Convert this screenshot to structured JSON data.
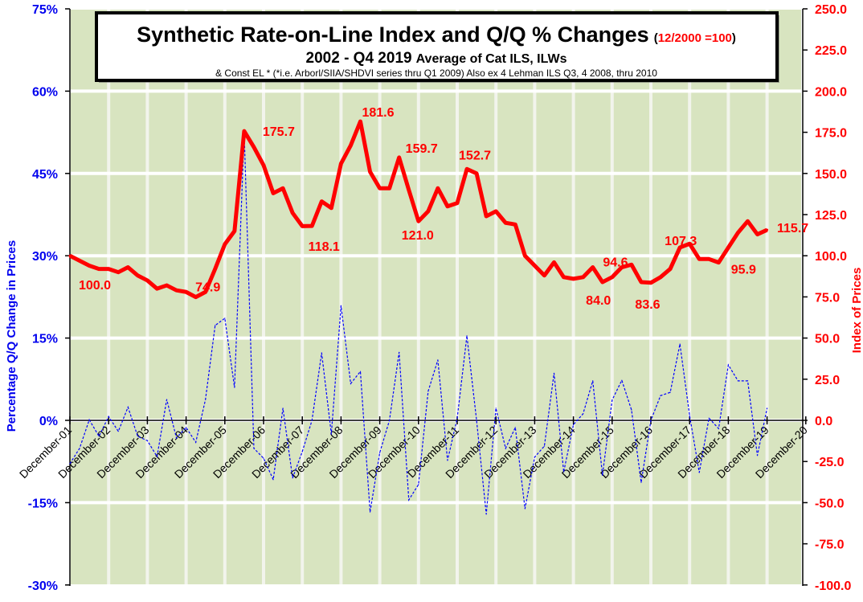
{
  "chart_data": {
    "type": "line",
    "title": "Synthetic Rate-on-Line Index and Q/Q % Changes",
    "title_note": "12/2000 =100",
    "subtitle_bold": "2002 - Q4 2019",
    "subtitle_rest": "Average of Cat ILS, ILWs",
    "footnote": "& Const EL * (*i.e. Arborl/SIIA/SHDVI  series thru Q1 2009)  Also ex 4 Lehman ILS Q3, 4 2008, thru 2010",
    "ylabel_left": "Percentage Q/Q Change in Prices",
    "ylabel_right": "Index of Prices",
    "ylim_left": [
      -30,
      75
    ],
    "ylim_right": [
      -100,
      250
    ],
    "left_ticks": [
      "75%",
      "60%",
      "45%",
      "30%",
      "15%",
      "0%",
      "-15%",
      "-30%"
    ],
    "right_ticks": [
      "250.0",
      "225.0",
      "200.0",
      "175.0",
      "150.0",
      "125.0",
      "100.0",
      "75.0",
      "50.0",
      "25.0",
      "0.0",
      "-25.0",
      "-50.0",
      "-75.0",
      "-100.0"
    ],
    "x_ticks": [
      "December-01",
      "December-02",
      "December-03",
      "December-04",
      "December-05",
      "December-06",
      "December-07",
      "December-08",
      "December-09",
      "December-10",
      "December-11",
      "December-12",
      "December-13",
      "December-14",
      "December-15",
      "December-16",
      "December-17",
      "December-18",
      "December-19",
      "December-20"
    ],
    "x_frequency": "quarterly",
    "grid": true,
    "series": [
      {
        "axis": "right",
        "color": "#ff0000",
        "style": "solid-thick",
        "values": [
          100,
          97,
          94,
          92,
          92,
          90,
          93,
          88,
          85,
          80,
          82,
          79,
          78,
          74.9,
          78,
          92,
          107,
          115,
          175.7,
          166,
          155,
          138,
          141,
          126,
          118,
          118.1,
          133,
          129,
          156,
          167,
          181.6,
          151,
          141,
          141,
          159.7,
          140,
          121.0,
          127,
          141,
          130,
          132,
          152.7,
          150,
          124,
          127,
          120,
          119,
          100,
          94,
          88,
          96,
          87,
          86,
          87,
          93,
          84.0,
          87,
          93,
          94.6,
          84,
          83.6,
          87,
          92,
          105,
          107.3,
          98,
          98,
          95.9,
          105,
          114,
          121,
          113,
          115.7
        ]
      },
      {
        "axis": "left",
        "color": "#0000ff",
        "style": "dotted",
        "values": [
          -7.9,
          -5.1,
          0.1,
          -2.9,
          0.7,
          -2.0,
          2.4,
          -2.9,
          -3.7,
          -6.6,
          3.8,
          -3.2,
          -1.3,
          -4.0,
          3.8,
          17.3,
          18.6,
          6.0,
          52.5,
          -5.1,
          -6.9,
          -10.8,
          2.2,
          -10.5,
          -5.7,
          0.0,
          12.3,
          -2.5,
          20.9,
          6.7,
          8.9,
          -16.7,
          -5.9,
          0.0,
          12.4,
          -14.5,
          -11.7,
          5.3,
          11.0,
          -7.3,
          0.4,
          15.4,
          0.0,
          -17.1,
          2.2,
          -5.1,
          -1.3,
          -16.1,
          -6.7,
          -4.7,
          8.6,
          -9.4,
          -0.8,
          1.2,
          7.2,
          -10.0,
          3.7,
          7.3,
          1.9,
          -11.3,
          0.0,
          4.5,
          5.1,
          13.9,
          0.9,
          -9.5,
          0.4,
          -1.5,
          10.1,
          7.2,
          7.2,
          -6.4,
          2.2
        ]
      }
    ],
    "data_labels": [
      {
        "index": 0,
        "text": "100.0"
      },
      {
        "index": 13,
        "text": "74.9"
      },
      {
        "index": 18,
        "text": "175.7"
      },
      {
        "index": 25,
        "text": "118.1"
      },
      {
        "index": 30,
        "text": "181.6"
      },
      {
        "index": 34,
        "text": "159.7"
      },
      {
        "index": 36,
        "text": "121.0"
      },
      {
        "index": 41,
        "text": "152.7"
      },
      {
        "index": 55,
        "text": "84.0"
      },
      {
        "index": 58,
        "text": "94.6"
      },
      {
        "index": 60,
        "text": "83.6"
      },
      {
        "index": 64,
        "text": "107.3"
      },
      {
        "index": 67,
        "text": "95.9"
      },
      {
        "index": 72,
        "text": "115.7"
      }
    ],
    "colors": {
      "plot_bg": "#d8e4c0",
      "left_axis": "#0000ee",
      "right_axis": "#ff0000"
    }
  }
}
